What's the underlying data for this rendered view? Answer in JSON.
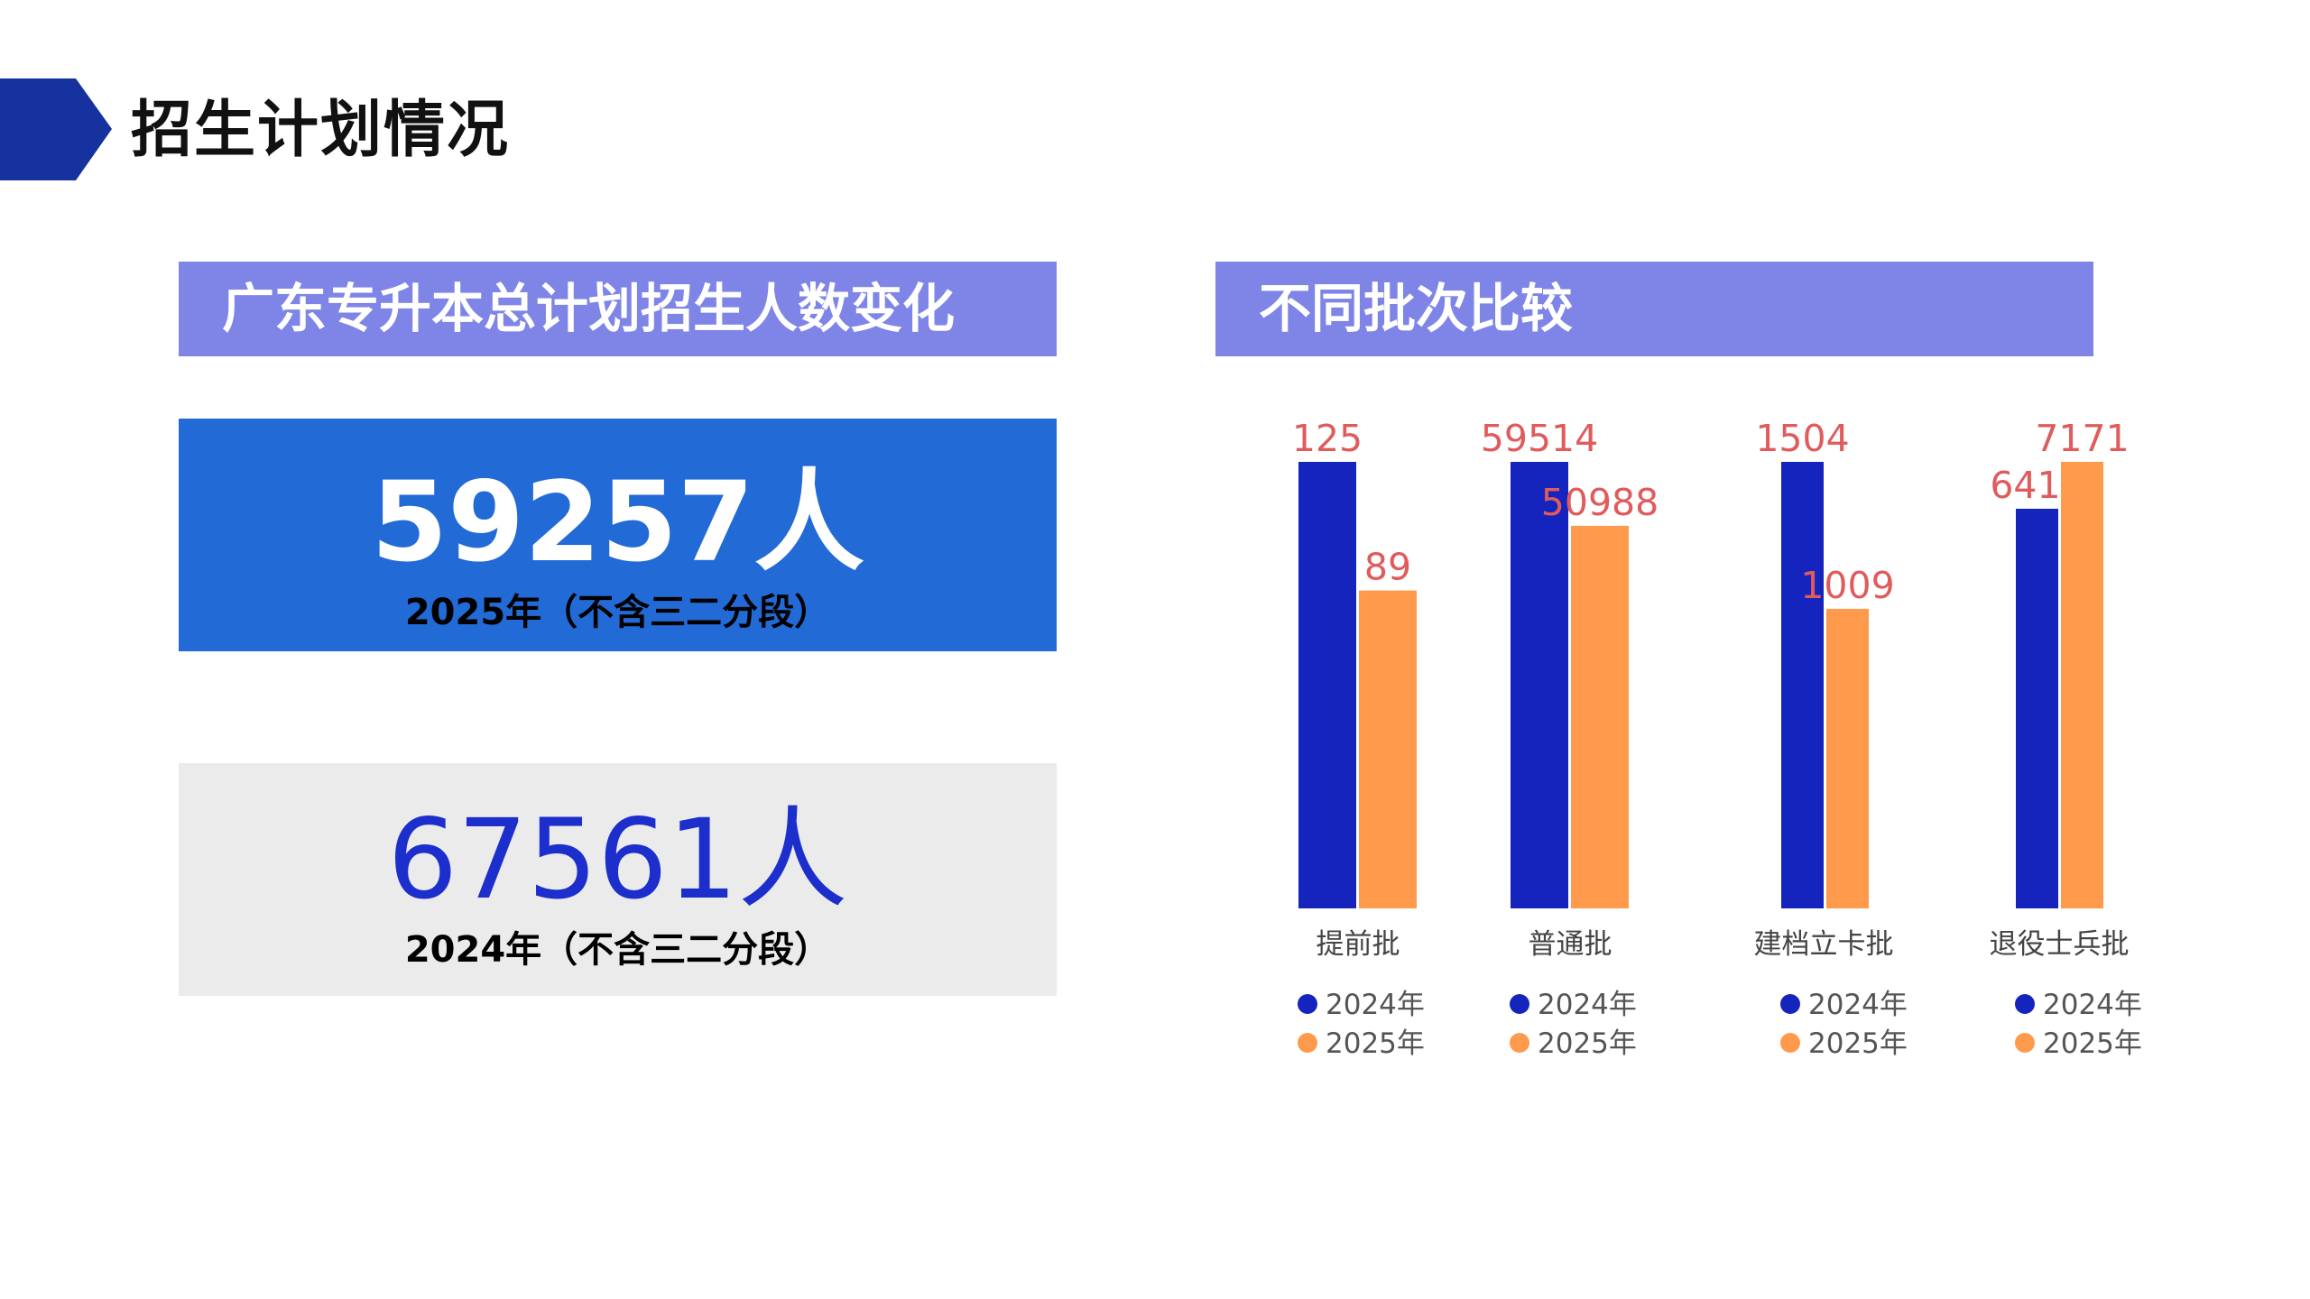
{
  "page": {
    "title": "招生计划情况"
  },
  "left_panel": {
    "heading": "广东专升本总计划招生人数变化",
    "stat_2025": {
      "value": "59257人",
      "caption": "2025年（不含三二分段）"
    },
    "stat_2024": {
      "value": "67561人",
      "caption": "2024年（不含三二分段）"
    }
  },
  "right_panel": {
    "heading": "不同批次比较"
  },
  "colors": {
    "accent": "#7E85E6",
    "series_2024": "#1624BE",
    "series_2025": "#FF9A4D",
    "value_label": "#E05B5B",
    "stat_2025_bg": "#226AD6",
    "stat_2024_bg": "#EBEBEB"
  },
  "chart_data": [
    {
      "type": "bar",
      "title": "提前批",
      "categories": [
        "提前批"
      ],
      "series": [
        {
          "name": "2024年",
          "values": [
            125
          ]
        },
        {
          "name": "2025年",
          "values": [
            89
          ]
        }
      ]
    },
    {
      "type": "bar",
      "title": "普通批",
      "categories": [
        "普通批"
      ],
      "series": [
        {
          "name": "2024年",
          "values": [
            59514
          ]
        },
        {
          "name": "2025年",
          "values": [
            50988
          ]
        }
      ]
    },
    {
      "type": "bar",
      "title": "建档立卡批",
      "categories": [
        "建档立卡批"
      ],
      "series": [
        {
          "name": "2024年",
          "values": [
            1504
          ]
        },
        {
          "name": "2025年",
          "values": [
            1009
          ]
        }
      ]
    },
    {
      "type": "bar",
      "title": "退役士兵批",
      "categories": [
        "退役士兵批"
      ],
      "series": [
        {
          "name": "2024年",
          "values": [
            6418
          ]
        },
        {
          "name": "2025年",
          "values": [
            7171
          ]
        }
      ]
    }
  ]
}
